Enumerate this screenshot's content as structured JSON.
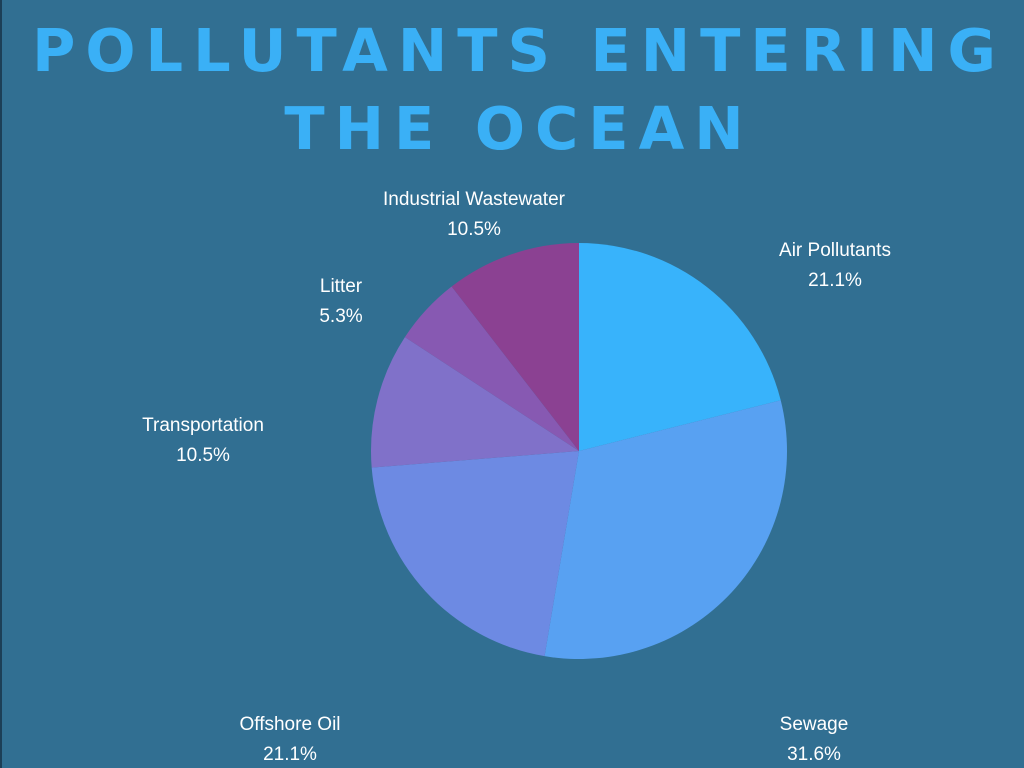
{
  "chart_data": {
    "type": "pie",
    "title": "POLLUTANTS ENTERING THE OCEAN",
    "slices": [
      {
        "label": "Air Pollutants",
        "value": 21.1,
        "value_label": "21.1%",
        "color": "#38b3fb"
      },
      {
        "label": "Sewage",
        "value": 31.6,
        "value_label": "31.6%",
        "color": "#58a1f2"
      },
      {
        "label": "Offshore Oil",
        "value": 21.1,
        "value_label": "21.1%",
        "color": "#6d8ae3"
      },
      {
        "label": "Transportation",
        "value": 10.5,
        "value_label": "10.5%",
        "color": "#8071c9"
      },
      {
        "label": "Litter",
        "value": 5.3,
        "value_label": "5.3%",
        "color": "#8759b2"
      },
      {
        "label": "Industrial Wastewater",
        "value": 10.5,
        "value_label": "10.5%",
        "color": "#8b4192"
      }
    ],
    "legend": "none",
    "labels": "outside"
  }
}
